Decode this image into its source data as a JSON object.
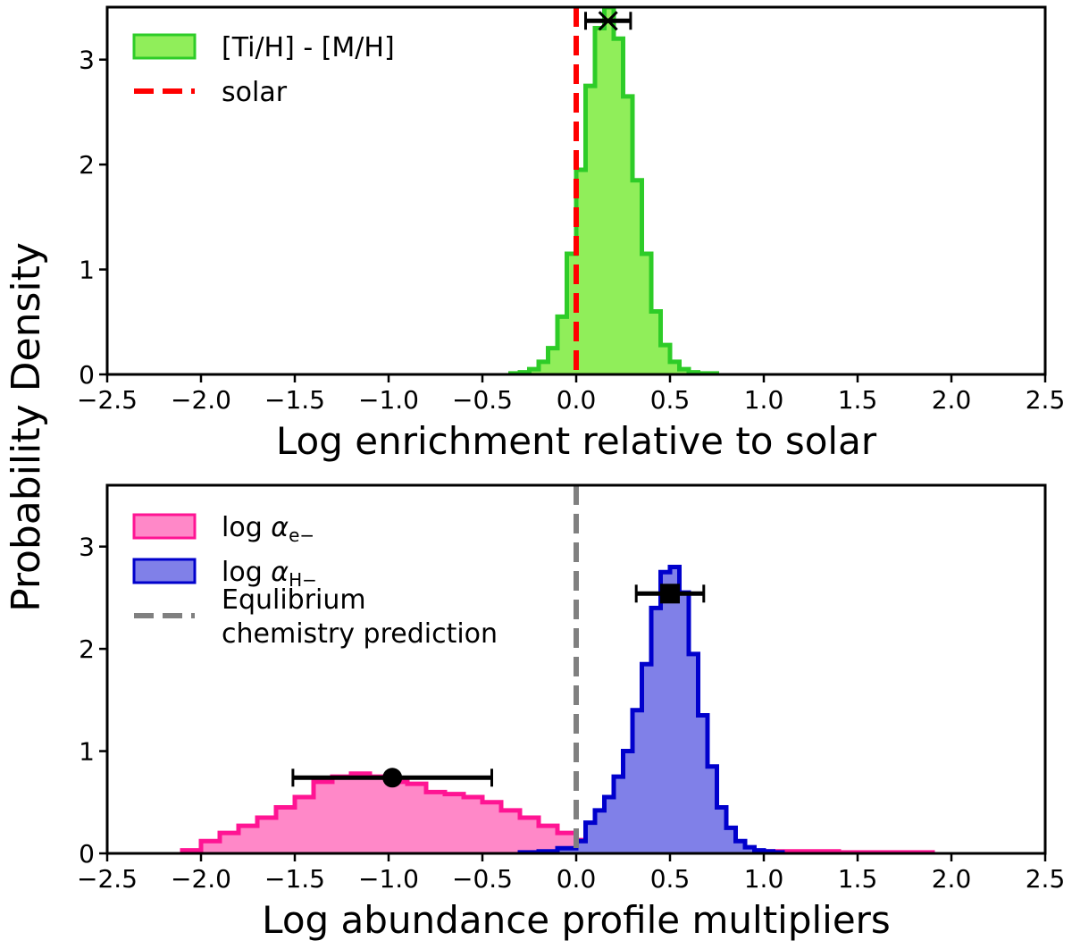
{
  "ylabel": "Probability Density",
  "chart_data": [
    {
      "type": "histogram",
      "xlabel": "Log enrichment relative to solar",
      "xlim": [
        -2.5,
        2.5
      ],
      "ylim": [
        0,
        3.5
      ],
      "xticks": [
        -2.5,
        -2.0,
        -1.5,
        -1.0,
        -0.5,
        0.0,
        0.5,
        1.0,
        1.5,
        2.0,
        2.5
      ],
      "yticks": [
        0,
        1,
        2,
        3
      ],
      "grid": false,
      "legend_position": "top-left",
      "series": [
        {
          "name": "[Ti/H] - [M/H]",
          "color": "#2ecc28",
          "fill": "#90ee5a",
          "edges": [
            -0.35,
            -0.3,
            -0.25,
            -0.2,
            -0.15,
            -0.1,
            -0.05,
            0.0,
            0.05,
            0.1,
            0.15,
            0.2,
            0.25,
            0.3,
            0.35,
            0.4,
            0.45,
            0.5,
            0.55,
            0.6,
            0.65,
            0.7,
            0.75
          ],
          "values": [
            0.01,
            0.02,
            0.05,
            0.12,
            0.25,
            0.55,
            1.15,
            1.95,
            2.75,
            3.3,
            3.5,
            3.2,
            2.65,
            1.85,
            1.15,
            0.6,
            0.28,
            0.12,
            0.05,
            0.02,
            0.01,
            0.01
          ]
        }
      ],
      "reference_lines": [
        {
          "name": "solar",
          "x": 0.0,
          "color": "#ff0000",
          "style": "dashed"
        }
      ],
      "markers": [
        {
          "shape": "x",
          "x": 0.17,
          "y": 3.37,
          "xerr": [
            0.12,
            0.12
          ],
          "color": "#000000"
        }
      ]
    },
    {
      "type": "histogram",
      "xlabel": "Log abundance profile multipliers",
      "xlim": [
        -2.5,
        2.5
      ],
      "ylim": [
        0,
        3.6
      ],
      "xticks": [
        -2.5,
        -2.0,
        -1.5,
        -1.0,
        -0.5,
        0.0,
        0.5,
        1.0,
        1.5,
        2.0,
        2.5
      ],
      "yticks": [
        0,
        1,
        2,
        3
      ],
      "grid": false,
      "legend_position": "top-left",
      "series": [
        {
          "name": "log α_e−",
          "name_base": "log α",
          "name_sub": "e−",
          "color": "#ff1493",
          "fill": "#ff88c8",
          "edges": [
            -2.1,
            -2.0,
            -1.9,
            -1.8,
            -1.7,
            -1.6,
            -1.5,
            -1.4,
            -1.3,
            -1.2,
            -1.1,
            -1.0,
            -0.9,
            -0.8,
            -0.7,
            -0.6,
            -0.5,
            -0.4,
            -0.3,
            -0.2,
            -0.1,
            0.0,
            0.1,
            0.2,
            0.3,
            0.4,
            0.5,
            0.6,
            0.7,
            0.8,
            0.9,
            1.0,
            1.1,
            1.2,
            1.3,
            1.4,
            1.5,
            1.6,
            1.7,
            1.8,
            1.9
          ],
          "values": [
            0.03,
            0.12,
            0.2,
            0.27,
            0.35,
            0.45,
            0.55,
            0.7,
            0.75,
            0.78,
            0.75,
            0.7,
            0.68,
            0.6,
            0.58,
            0.55,
            0.5,
            0.42,
            0.35,
            0.27,
            0.2,
            0.13,
            0.08,
            0.05,
            0.04,
            0.03,
            0.03,
            0.03,
            0.03,
            0.03,
            0.02,
            0.02,
            0.02,
            0.02,
            0.02,
            0.01,
            0.01,
            0.01,
            0.01,
            0.01
          ]
        },
        {
          "name": "log α_H−",
          "name_base": "log α",
          "name_sub": "H−",
          "color": "#0000cc",
          "fill": "#8080e8",
          "edges": [
            -0.3,
            -0.2,
            -0.1,
            0.0,
            0.05,
            0.1,
            0.15,
            0.2,
            0.25,
            0.3,
            0.35,
            0.4,
            0.45,
            0.5,
            0.55,
            0.6,
            0.65,
            0.7,
            0.75,
            0.8,
            0.85,
            0.9,
            0.95,
            1.0,
            1.05,
            1.1
          ],
          "values": [
            0.01,
            0.02,
            0.05,
            0.12,
            0.3,
            0.42,
            0.55,
            0.75,
            1.0,
            1.4,
            1.85,
            2.4,
            2.75,
            2.8,
            2.55,
            1.95,
            1.35,
            0.85,
            0.45,
            0.25,
            0.12,
            0.06,
            0.03,
            0.02,
            0.01
          ]
        }
      ],
      "reference_lines": [
        {
          "name": "Equlibrium\nchemistry prediction",
          "name_lines": [
            "Equlibrium",
            "chemistry prediction"
          ],
          "x": 0.0,
          "color": "#808080",
          "style": "dashed"
        }
      ],
      "markers": [
        {
          "shape": "circle",
          "x": -0.98,
          "y": 0.74,
          "xerr": [
            0.53,
            0.53
          ],
          "color": "#000000"
        },
        {
          "shape": "square",
          "x": 0.5,
          "y": 2.54,
          "xerr": [
            0.18,
            0.18
          ],
          "color": "#000000"
        }
      ]
    }
  ]
}
